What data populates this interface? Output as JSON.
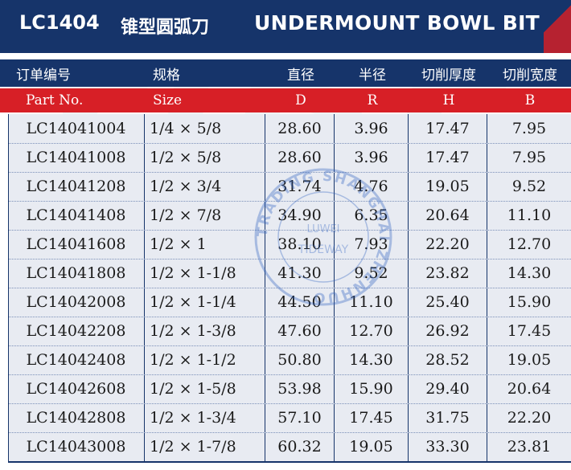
{
  "title": {
    "code": "LC1404",
    "chinese": "锥型圆弧刀",
    "english": "UNDERMOUNT BOWL BIT"
  },
  "header_cn": [
    "订单编号",
    "规格",
    "直径",
    "半径",
    "切削厚度",
    "切削宽度"
  ],
  "header_en": [
    "Part No.",
    "Size",
    "D",
    "R",
    "H",
    "B"
  ],
  "rows": [
    [
      "LC14041004",
      "1/4 × 5/8",
      "28.60",
      "3.96",
      "17.47",
      "7.95"
    ],
    [
      "LC14041008",
      "1/2 × 5/8",
      "28.60",
      "3.96",
      "17.47",
      "7.95"
    ],
    [
      "LC14041208",
      "1/2 × 3/4",
      "31.74",
      "4.76",
      "19.05",
      "9.52"
    ],
    [
      "LC14041408",
      "1/2 × 7/8",
      "34.90",
      "6.35",
      "20.64",
      "11.10"
    ],
    [
      "LC14041608",
      "1/2 × 1",
      "38.10",
      "7.93",
      "22.20",
      "12.70"
    ],
    [
      "LC14041808",
      "1/2 × 1-1/8",
      "41.30",
      "9.52",
      "23.82",
      "14.30"
    ],
    [
      "LC14042008",
      "1/2 × 1-1/4",
      "44.50",
      "11.10",
      "25.40",
      "15.90"
    ],
    [
      "LC14042208",
      "1/2 × 1-3/8",
      "47.60",
      "12.70",
      "26.92",
      "17.45"
    ],
    [
      "LC14042408",
      "1/2 × 1-1/2",
      "50.80",
      "14.30",
      "28.52",
      "19.05"
    ],
    [
      "LC14042608",
      "1/2 × 1-5/8",
      "53.98",
      "15.90",
      "29.40",
      "20.64"
    ],
    [
      "LC14042808",
      "1/2 × 1-3/4",
      "57.10",
      "17.45",
      "31.75",
      "22.20"
    ],
    [
      "LC14043008",
      "1/2 × 1-7/8",
      "60.32",
      "19.05",
      "33.30",
      "23.81"
    ]
  ],
  "watermark": {
    "letters": "TIDE",
    "stamp_ring": "TRADING SHANGHAI ZHENHUO",
    "stamp_inner_1": "LUWEI",
    "stamp_inner_2": "TIDEWAY"
  },
  "colors": {
    "navy": "#16346a",
    "red": "#d71f26",
    "row_bg": "#e8ebf2"
  }
}
